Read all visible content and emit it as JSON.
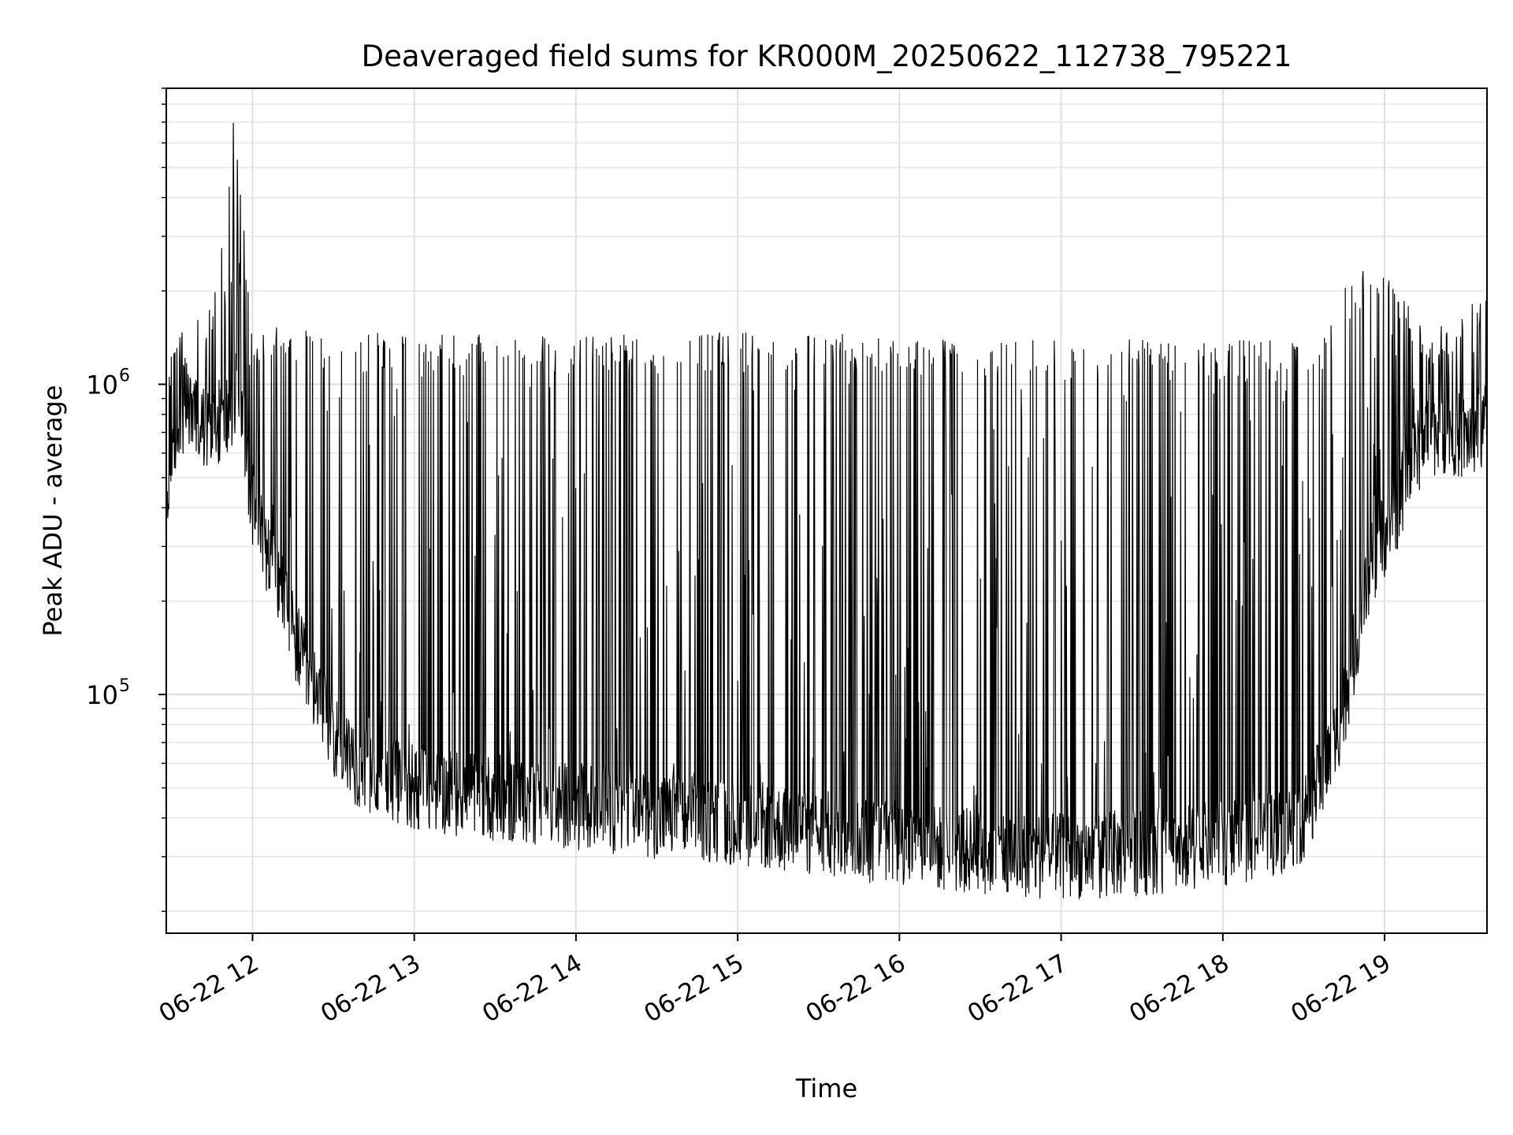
{
  "chart_data": {
    "type": "line",
    "title": "Deaveraged field sums for KR000M_20250622_112738_795221",
    "xlabel": "Time",
    "ylabel": "Peak ADU - average",
    "yscale": "log",
    "ylim": [
      17000,
      9000000
    ],
    "xlim": [
      "2025-06-22 11:28",
      "2025-06-22 19:38"
    ],
    "x_tick_labels": [
      "06-22 12",
      "06-22 13",
      "06-22 14",
      "06-22 15",
      "06-22 16",
      "06-22 17",
      "06-22 18",
      "06-22 19"
    ],
    "x_ticks": [
      "2025-06-22 12:00",
      "2025-06-22 13:00",
      "2025-06-22 14:00",
      "2025-06-22 15:00",
      "2025-06-22 16:00",
      "2025-06-22 17:00",
      "2025-06-22 18:00",
      "2025-06-22 19:00"
    ],
    "y_ticks": [
      {
        "value": 1000000,
        "base": "10",
        "exp": "6"
      },
      {
        "value": 100000,
        "base": "10",
        "exp": "5"
      }
    ],
    "grid": true,
    "line_color": "#000000",
    "series": [
      {
        "x": [
          "2025-06-22 11:28",
          "2025-06-22 11:35",
          "2025-06-22 11:40",
          "2025-06-22 11:45",
          "2025-06-22 11:50",
          "2025-06-22 11:55",
          "2025-06-22 12:00",
          "2025-06-22 12:05",
          "2025-06-22 12:10",
          "2025-06-22 12:15",
          "2025-06-22 12:20",
          "2025-06-22 12:25",
          "2025-06-22 12:30",
          "2025-06-22 12:40",
          "2025-06-22 12:50",
          "2025-06-22 13:00",
          "2025-06-22 13:15",
          "2025-06-22 13:30",
          "2025-06-22 14:00",
          "2025-06-22 14:30",
          "2025-06-22 15:00",
          "2025-06-22 15:30",
          "2025-06-22 16:00",
          "2025-06-22 16:30",
          "2025-06-22 17:00",
          "2025-06-22 17:30",
          "2025-06-22 18:00",
          "2025-06-22 18:20",
          "2025-06-22 18:30",
          "2025-06-22 18:35",
          "2025-06-22 18:40",
          "2025-06-22 18:45",
          "2025-06-22 18:50",
          "2025-06-22 18:55",
          "2025-06-22 19:00",
          "2025-06-22 19:05",
          "2025-06-22 19:15",
          "2025-06-22 19:25",
          "2025-06-22 19:30",
          "2025-06-22 19:38"
        ],
        "y": [
          420000,
          900000,
          750000,
          760000,
          800000,
          1000000,
          420000,
          310000,
          230000,
          165000,
          120000,
          95000,
          78000,
          60000,
          55000,
          52000,
          50000,
          48000,
          45000,
          42000,
          40000,
          37000,
          34000,
          32000,
          31000,
          32000,
          34000,
          37000,
          41000,
          52000,
          66000,
          95000,
          160000,
          270000,
          340000,
          420000,
          720000,
          730000,
          700000,
          760000
        ]
      }
    ],
    "spike_envelope": {
      "x": [
        "2025-06-22 11:28",
        "2025-06-22 11:45",
        "2025-06-22 11:53",
        "2025-06-22 12:00",
        "2025-06-22 12:30",
        "2025-06-22 13:00",
        "2025-06-22 14:00",
        "2025-06-22 15:00",
        "2025-06-22 16:00",
        "2025-06-22 17:00",
        "2025-06-22 18:00",
        "2025-06-22 18:30",
        "2025-06-22 18:55",
        "2025-06-22 19:15",
        "2025-06-22 19:38"
      ],
      "y": [
        1200000,
        2000000,
        7200000,
        1500000,
        1450000,
        1400000,
        1400000,
        1450000,
        1400000,
        1350000,
        1350000,
        1350000,
        2600000,
        1500000,
        1850000
      ]
    }
  }
}
